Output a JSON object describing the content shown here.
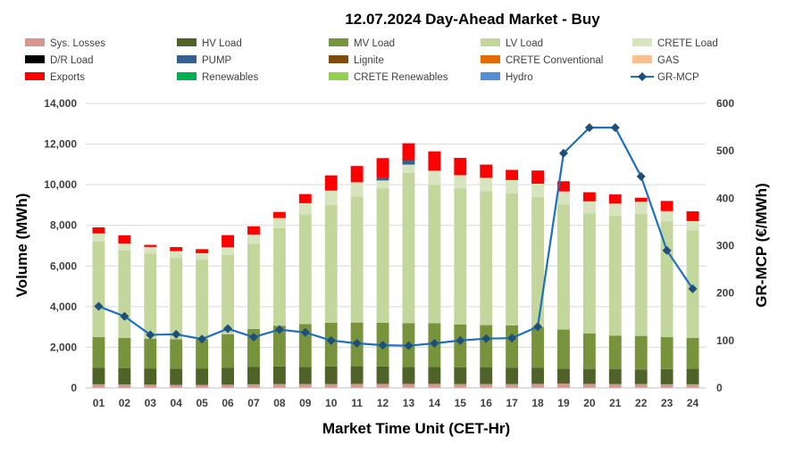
{
  "chart_data": {
    "type": "bar",
    "subtype": "stacked-bar-with-line-secondary-axis",
    "title": "12.07.2024  Day-Ahead Market - Buy",
    "xlabel": "Market Time Unit (CET-Hr)",
    "ylabel": "Volume (MWh)",
    "y2label": "GR-MCP (€/MWh)",
    "ylim": [
      0,
      14000
    ],
    "y2lim": [
      0,
      600
    ],
    "yticks": [
      "0",
      "2,000",
      "4,000",
      "6,000",
      "8,000",
      "10,000",
      "12,000",
      "14,000"
    ],
    "y2ticks": [
      "0",
      "100",
      "200",
      "300",
      "400",
      "500",
      "600"
    ],
    "grid": true,
    "legend_position": "top",
    "categories": [
      "01",
      "02",
      "03",
      "04",
      "05",
      "06",
      "07",
      "08",
      "09",
      "10",
      "11",
      "12",
      "13",
      "14",
      "15",
      "16",
      "17",
      "18",
      "19",
      "20",
      "21",
      "22",
      "23",
      "24"
    ],
    "series": [
      {
        "name": "Sys. Losses",
        "color": "#d9958f",
        "values": [
          180,
          170,
          160,
          150,
          150,
          160,
          180,
          190,
          190,
          190,
          200,
          200,
          200,
          200,
          190,
          190,
          190,
          200,
          210,
          200,
          190,
          190,
          180,
          180
        ]
      },
      {
        "name": "HV Load",
        "color": "#4f6228",
        "values": [
          820,
          810,
          800,
          800,
          810,
          830,
          850,
          870,
          850,
          870,
          870,
          860,
          840,
          840,
          830,
          820,
          810,
          800,
          730,
          720,
          730,
          720,
          750,
          760
        ]
      },
      {
        "name": "MV Load",
        "color": "#77933c",
        "values": [
          1500,
          1480,
          1460,
          1450,
          1440,
          1650,
          1870,
          2000,
          2100,
          2150,
          2150,
          2150,
          2150,
          2150,
          2100,
          2080,
          2080,
          2000,
          1930,
          1760,
          1650,
          1650,
          1570,
          1520
        ]
      },
      {
        "name": "LV Load",
        "color": "#c3d69b",
        "values": [
          4700,
          4300,
          4200,
          4000,
          3900,
          3900,
          4200,
          4800,
          5400,
          5800,
          6200,
          6600,
          7400,
          6800,
          6700,
          6600,
          6500,
          6400,
          6150,
          5900,
          5900,
          6000,
          5700,
          5300
        ]
      },
      {
        "name": "CRETE Load",
        "color": "#d7e4bd",
        "values": [
          400,
          350,
          320,
          330,
          330,
          380,
          450,
          500,
          550,
          700,
          700,
          400,
          400,
          700,
          650,
          650,
          650,
          650,
          650,
          600,
          600,
          600,
          500,
          450
        ]
      },
      {
        "name": "D/R Load",
        "color": "#000000",
        "values": [
          0,
          0,
          0,
          0,
          0,
          0,
          0,
          0,
          0,
          0,
          0,
          0,
          0,
          0,
          0,
          0,
          0,
          0,
          0,
          0,
          0,
          0,
          0,
          0
        ]
      },
      {
        "name": "PUMP",
        "color": "#376092",
        "values": [
          0,
          0,
          0,
          0,
          0,
          0,
          0,
          0,
          0,
          0,
          0,
          150,
          200,
          0,
          0,
          0,
          0,
          0,
          0,
          0,
          0,
          0,
          0,
          0
        ]
      },
      {
        "name": "Lignite",
        "color": "#7f4b0f",
        "values": [
          0,
          0,
          0,
          0,
          0,
          0,
          0,
          0,
          0,
          0,
          0,
          0,
          0,
          0,
          0,
          0,
          0,
          0,
          0,
          0,
          0,
          0,
          0,
          0
        ]
      },
      {
        "name": "CRETE Conventional",
        "color": "#e36c09",
        "values": [
          0,
          0,
          0,
          0,
          0,
          0,
          0,
          0,
          0,
          0,
          0,
          0,
          0,
          0,
          0,
          0,
          0,
          0,
          0,
          0,
          0,
          0,
          0,
          0
        ]
      },
      {
        "name": "GAS",
        "color": "#fac090",
        "values": [
          0,
          0,
          0,
          0,
          0,
          0,
          0,
          0,
          0,
          0,
          0,
          0,
          0,
          0,
          0,
          0,
          0,
          0,
          0,
          0,
          0,
          0,
          0,
          0
        ]
      },
      {
        "name": "Exports",
        "color": "#ff0000",
        "values": [
          300,
          400,
          100,
          200,
          200,
          600,
          400,
          300,
          450,
          750,
          800,
          950,
          850,
          950,
          850,
          650,
          500,
          650,
          500,
          450,
          450,
          200,
          500,
          480
        ]
      },
      {
        "name": "Renewables",
        "color": "#00b050",
        "values": [
          0,
          0,
          0,
          0,
          0,
          0,
          0,
          0,
          0,
          0,
          0,
          0,
          0,
          0,
          0,
          0,
          0,
          0,
          0,
          0,
          0,
          0,
          0,
          0
        ]
      },
      {
        "name": "CRETE Renewables",
        "color": "#92d050",
        "values": [
          0,
          0,
          0,
          0,
          0,
          0,
          0,
          0,
          0,
          0,
          0,
          0,
          0,
          0,
          0,
          0,
          0,
          0,
          0,
          0,
          0,
          0,
          0,
          0
        ]
      },
      {
        "name": "Hydro",
        "color": "#558ed5",
        "values": [
          0,
          0,
          0,
          0,
          0,
          0,
          0,
          0,
          0,
          0,
          0,
          0,
          0,
          0,
          0,
          0,
          0,
          0,
          0,
          0,
          0,
          0,
          0,
          0
        ]
      }
    ],
    "line_series": {
      "name": "GR-MCP",
      "color": "#1f6fbf",
      "axis": "secondary",
      "values": [
        172,
        151,
        112,
        113,
        103,
        125,
        107,
        123,
        117,
        100,
        94,
        90,
        89,
        94,
        100,
        104,
        105,
        129,
        495,
        549,
        549,
        446,
        290,
        209
      ]
    }
  }
}
